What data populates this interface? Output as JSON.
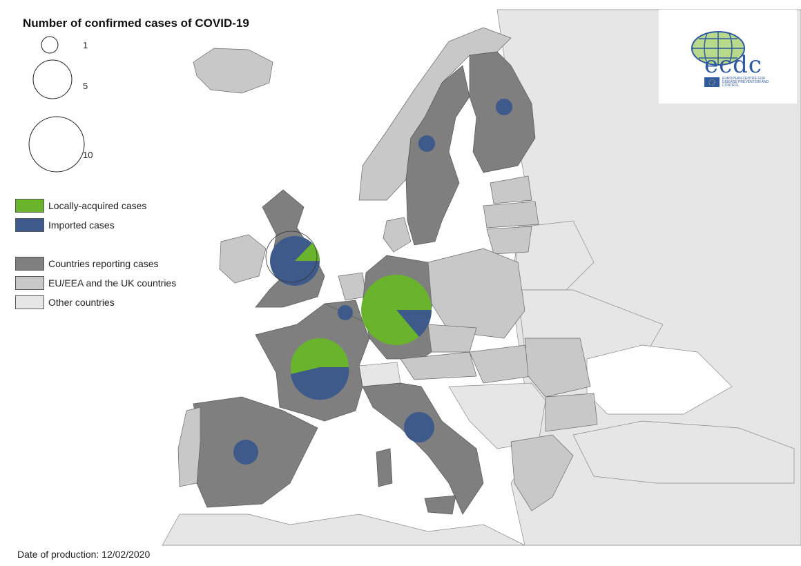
{
  "title": "Number of confirmed cases of COVID-19",
  "size_legend": [
    "1",
    "5",
    "10"
  ],
  "legend": {
    "local": "Locally-acquired cases",
    "imported": "Imported cases",
    "reporting": "Countries reporting cases",
    "eu": "EU/EEA and the UK countries",
    "other": "Other countries"
  },
  "colors": {
    "local": "#6ab42d",
    "imported": "#3d5a8a",
    "reporting": "#7f7f7f",
    "eu": "#c8c8c8",
    "other": "#e6e6e6",
    "sea": "#ffffff"
  },
  "footer": "Date of production: 12/02/2020",
  "logo": {
    "wordmark": "ecdc",
    "subtitle": "EUROPEAN CENTRE FOR DISEASE PREVENTION AND CONTROL"
  },
  "icons": [
    "ecdc-globe-icon",
    "eu-flag-icon"
  ]
}
